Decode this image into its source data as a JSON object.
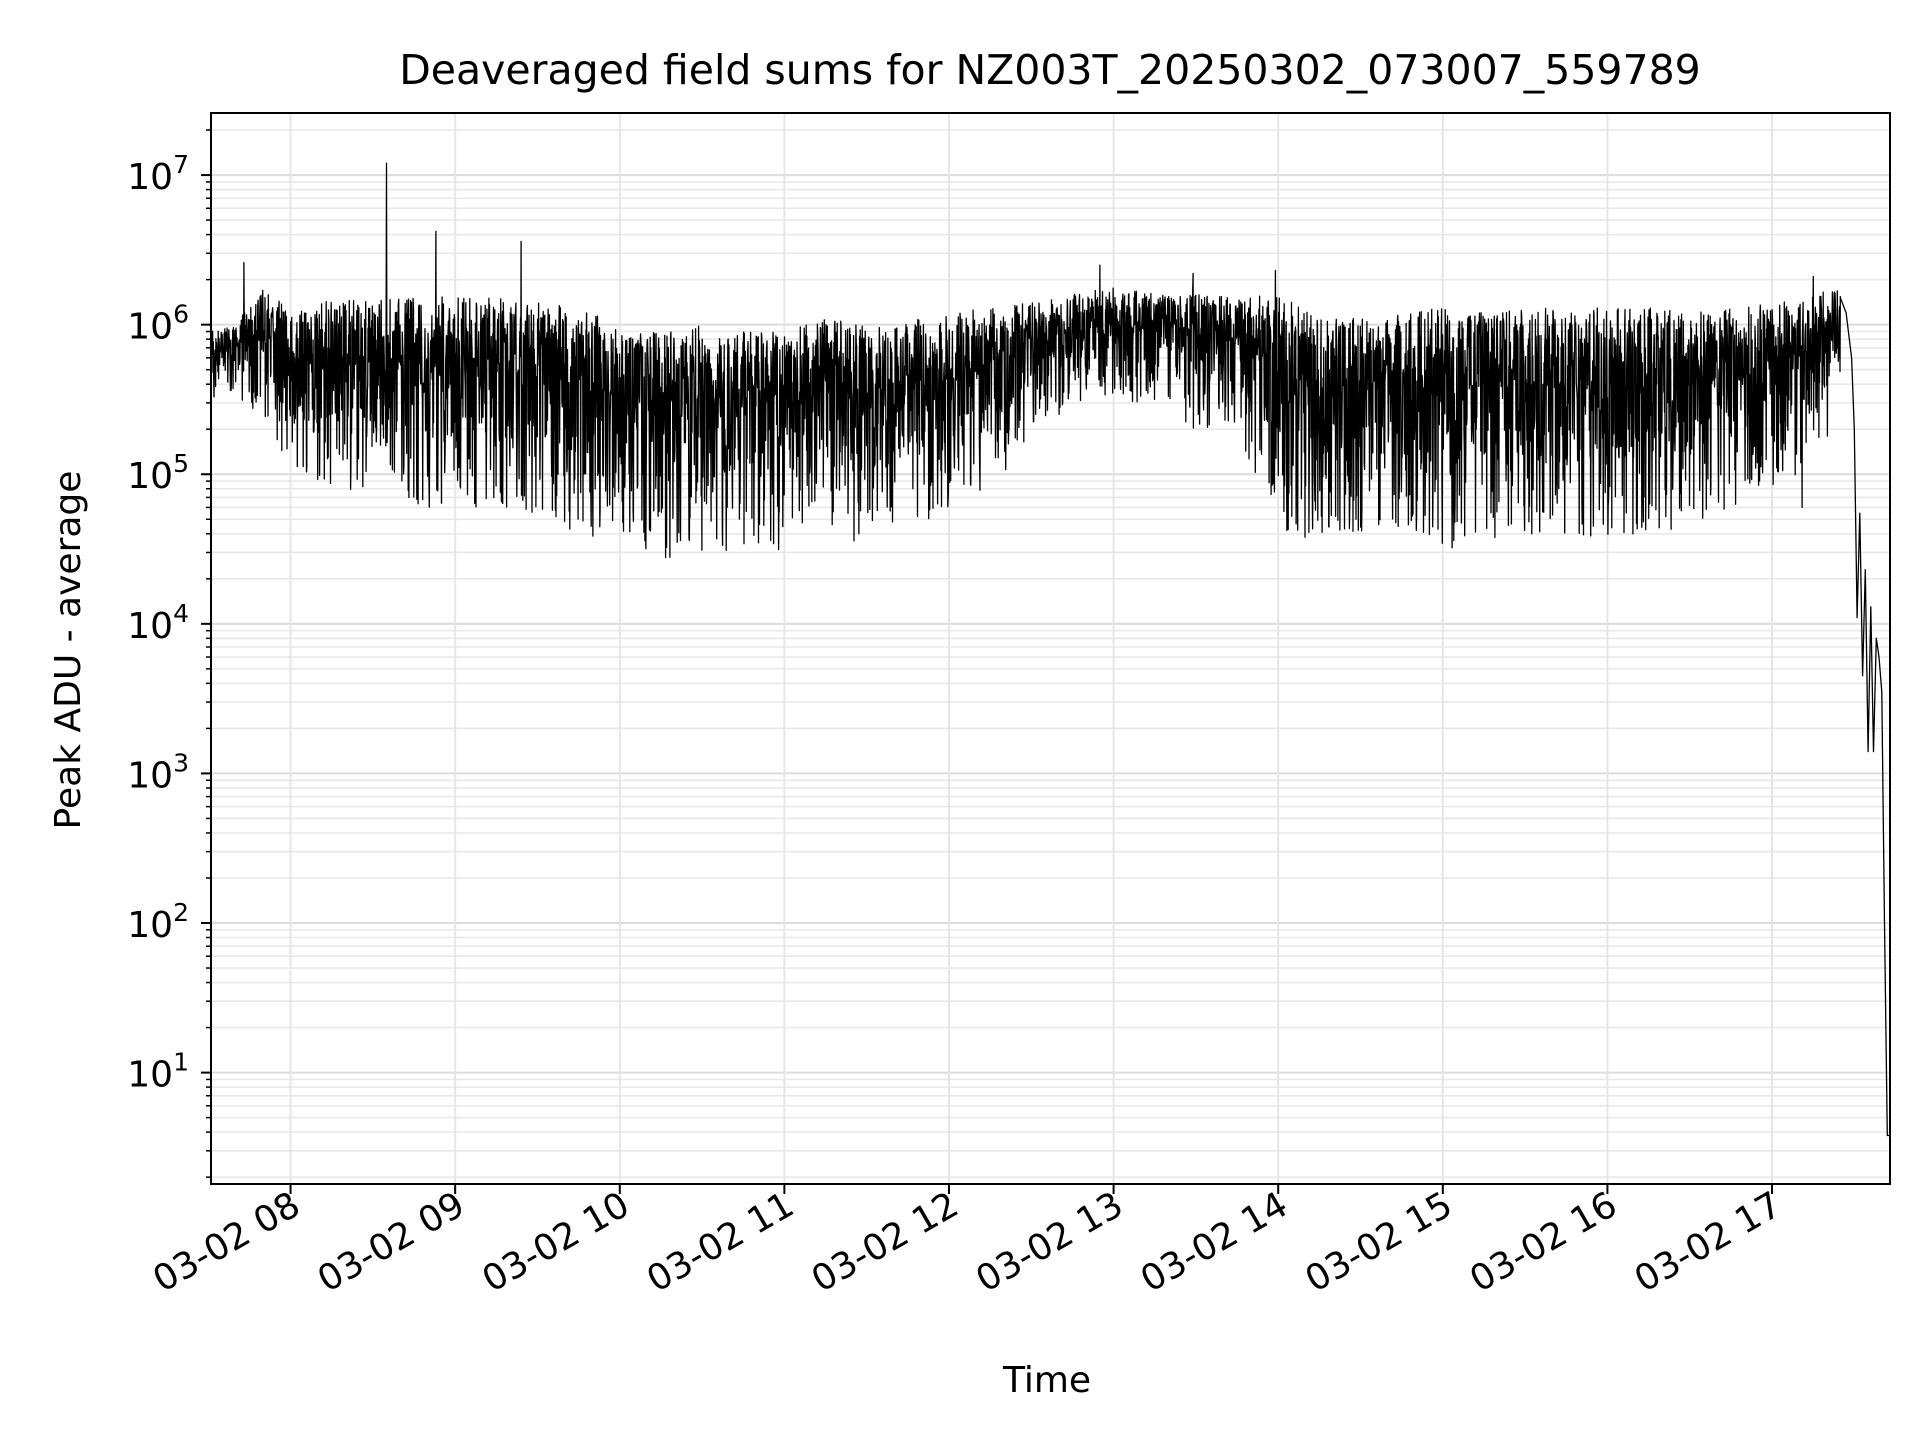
{
  "chart_data": {
    "type": "line",
    "title": "Deaveraged field sums for NZ003T_20250302_073007_559789",
    "xlabel": "Time",
    "ylabel": "Peak ADU - average",
    "y_scale": "log",
    "ylim": [
      1.8,
      26000000
    ],
    "xlim": [
      "2025-03-02 07:31",
      "2025-03-02 17:43"
    ],
    "grid": true,
    "line_color": "#000000",
    "x_ticks": [
      {
        "label": "03-02 08",
        "x": "2025-03-02 08:00"
      },
      {
        "label": "03-02 09",
        "x": "2025-03-02 09:00"
      },
      {
        "label": "03-02 10",
        "x": "2025-03-02 10:00"
      },
      {
        "label": "03-02 11",
        "x": "2025-03-02 11:00"
      },
      {
        "label": "03-02 12",
        "x": "2025-03-02 12:00"
      },
      {
        "label": "03-02 13",
        "x": "2025-03-02 13:00"
      },
      {
        "label": "03-02 14",
        "x": "2025-03-02 14:00"
      },
      {
        "label": "03-02 15",
        "x": "2025-03-02 15:00"
      },
      {
        "label": "03-02 16",
        "x": "2025-03-02 16:00"
      },
      {
        "label": "03-02 17",
        "x": "2025-03-02 17:00"
      }
    ],
    "y_ticks": [
      {
        "base": "10",
        "exp": "1",
        "value": 10
      },
      {
        "base": "10",
        "exp": "2",
        "value": 100
      },
      {
        "base": "10",
        "exp": "3",
        "value": 1000
      },
      {
        "base": "10",
        "exp": "4",
        "value": 10000
      },
      {
        "base": "10",
        "exp": "5",
        "value": 100000
      },
      {
        "base": "10",
        "exp": "6",
        "value": 1000000
      },
      {
        "base": "10",
        "exp": "7",
        "value": 10000000
      }
    ],
    "envelope": {
      "x": [
        "2025-03-02 07:31",
        "2025-03-02 07:40",
        "2025-03-02 07:50",
        "2025-03-02 08:00",
        "2025-03-02 08:15",
        "2025-03-02 08:30",
        "2025-03-02 08:45",
        "2025-03-02 09:00",
        "2025-03-02 09:15",
        "2025-03-02 09:30",
        "2025-03-02 09:45",
        "2025-03-02 10:00",
        "2025-03-02 10:15",
        "2025-03-02 10:30",
        "2025-03-02 10:45",
        "2025-03-02 11:00",
        "2025-03-02 11:15",
        "2025-03-02 11:30",
        "2025-03-02 11:45",
        "2025-03-02 12:00",
        "2025-03-02 12:15",
        "2025-03-02 12:30",
        "2025-03-02 12:45",
        "2025-03-02 13:00",
        "2025-03-02 13:15",
        "2025-03-02 13:30",
        "2025-03-02 13:45",
        "2025-03-02 14:00",
        "2025-03-02 14:15",
        "2025-03-02 14:30",
        "2025-03-02 14:45",
        "2025-03-02 15:00",
        "2025-03-02 15:15",
        "2025-03-02 15:30",
        "2025-03-02 15:45",
        "2025-03-02 16:00",
        "2025-03-02 16:15",
        "2025-03-02 16:30",
        "2025-03-02 16:45",
        "2025-03-02 17:00",
        "2025-03-02 17:10",
        "2025-03-02 17:20",
        "2025-03-02 17:25"
      ],
      "high": [
        900000,
        1000000,
        1800000,
        1300000,
        1500000,
        1500000,
        1500000,
        1550000,
        1500000,
        1400000,
        1300000,
        1000000,
        900000,
        1000000,
        900000,
        900000,
        1100000,
        1000000,
        1100000,
        1200000,
        1300000,
        1400000,
        1600000,
        1800000,
        1600000,
        1700000,
        1500000,
        1600000,
        1100000,
        1100000,
        1200000,
        1300000,
        1200000,
        1300000,
        1300000,
        1300000,
        1300000,
        1200000,
        1300000,
        1400000,
        1500000,
        1700000,
        1800000
      ],
      "low": [
        300000,
        350000,
        200000,
        100000,
        80000,
        70000,
        60000,
        60000,
        55000,
        50000,
        40000,
        28000,
        27000,
        27000,
        27000,
        30000,
        50000,
        30000,
        40000,
        50000,
        80000,
        150000,
        300000,
        350000,
        250000,
        200000,
        200000,
        40000,
        35000,
        40000,
        45000,
        30000,
        35000,
        40000,
        35000,
        35000,
        40000,
        45000,
        60000,
        80000,
        100000,
        150000,
        500000
      ]
    },
    "spikes": [
      {
        "x": "2025-03-02 07:43",
        "y": 2600000
      },
      {
        "x": "2025-03-02 08:35",
        "y": 12000000
      },
      {
        "x": "2025-03-02 08:53",
        "y": 4200000
      },
      {
        "x": "2025-03-02 09:24",
        "y": 3600000
      },
      {
        "x": "2025-03-02 12:55",
        "y": 2500000
      },
      {
        "x": "2025-03-02 13:29",
        "y": 2200000
      },
      {
        "x": "2025-03-02 13:59",
        "y": 2300000
      },
      {
        "x": "2025-03-02 17:15",
        "y": 2100000
      },
      {
        "x": "2025-03-02 17:11",
        "y": 60000
      },
      {
        "x": "2025-03-02 12:02",
        "y": 110000
      }
    ],
    "tail": {
      "x": [
        "2025-03-02 17:25",
        "2025-03-02 17:27",
        "2025-03-02 17:29",
        "2025-03-02 17:30",
        "2025-03-02 17:31",
        "2025-03-02 17:32",
        "2025-03-02 17:33",
        "2025-03-02 17:34",
        "2025-03-02 17:35",
        "2025-03-02 17:36",
        "2025-03-02 17:37",
        "2025-03-02 17:38",
        "2025-03-02 17:39",
        "2025-03-02 17:40",
        "2025-03-02 17:41",
        "2025-03-02 17:42",
        "2025-03-02 17:43"
      ],
      "y": [
        1500000,
        1200000,
        600000,
        200000,
        11000,
        55000,
        4500,
        23000,
        1400,
        13000,
        1400,
        8000,
        6000,
        3500,
        100,
        3.8,
        3.8
      ]
    }
  }
}
